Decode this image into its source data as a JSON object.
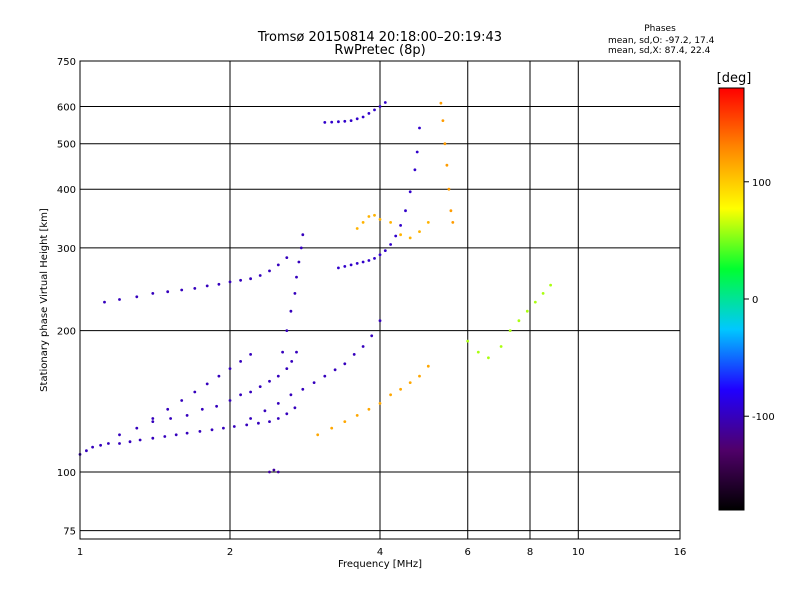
{
  "chart_data": {
    "type": "scatter",
    "title": "Tromsø 20150814 20:18:00–20:19:43",
    "subtitle": "RwPretec (8p)",
    "xlabel": "Frequency [MHz]",
    "ylabel": "Stationary phase Virtual Height [km]",
    "x_scale": "log",
    "y_scale": "log",
    "xlim": [
      1,
      16
    ],
    "ylim": [
      72,
      750
    ],
    "x_ticks": [
      1,
      2,
      4,
      6,
      8,
      10,
      16
    ],
    "y_ticks": [
      75,
      100,
      200,
      300,
      400,
      500,
      600,
      750
    ],
    "grid": true,
    "stats": {
      "heading": "Phases",
      "line1": "mean, sd,O: -97.2, 17.4",
      "line2": "mean, sd,X: 87.4, 22.4"
    },
    "colorbar": {
      "label": "[deg]",
      "range": [
        -180,
        180
      ],
      "ticks": [
        100,
        0,
        -100
      ],
      "colors": [
        "#000000",
        "#50006a",
        "#2000ff",
        "#00c8ff",
        "#00ff30",
        "#ffff00",
        "#ff8800",
        "#ff0000"
      ]
    },
    "series": [
      {
        "phase": -100,
        "x": [
          1.0,
          1.03,
          1.06,
          1.1,
          1.14,
          1.2,
          1.26,
          1.32,
          1.4,
          1.48,
          1.56,
          1.64,
          1.74,
          1.84,
          1.94,
          2.04,
          2.16,
          2.28,
          2.4,
          2.5,
          2.6,
          2.7
        ],
        "y": [
          109,
          111,
          113,
          114,
          115,
          115,
          116,
          117,
          118,
          119,
          120,
          121,
          122,
          123,
          124,
          125,
          126,
          127,
          128,
          130,
          133,
          137
        ]
      },
      {
        "phase": -100,
        "x": [
          1.2,
          1.3,
          1.4,
          1.52,
          1.64,
          1.76,
          1.88,
          2.0,
          2.1,
          2.2,
          2.3,
          2.4,
          2.5,
          2.6,
          2.66,
          2.72
        ],
        "y": [
          120,
          124,
          128,
          130,
          132,
          136,
          138,
          142,
          146,
          148,
          152,
          156,
          160,
          166,
          172,
          180
        ]
      },
      {
        "phase": -100,
        "x": [
          1.4,
          1.5,
          1.6,
          1.7,
          1.8,
          1.9,
          2.0,
          2.1,
          2.2
        ],
        "y": [
          130,
          136,
          142,
          148,
          154,
          160,
          166,
          172,
          178
        ]
      },
      {
        "phase": -100,
        "x": [
          1.12,
          1.2,
          1.3,
          1.4,
          1.5,
          1.6,
          1.7,
          1.8,
          1.9,
          2.0,
          2.1,
          2.2,
          2.3,
          2.4,
          2.5,
          2.6
        ],
        "y": [
          230,
          233,
          236,
          240,
          242,
          244,
          246,
          249,
          251,
          254,
          256,
          258,
          262,
          268,
          276,
          286
        ]
      },
      {
        "phase": -100,
        "x": [
          2.55,
          2.6,
          2.65,
          2.7,
          2.72,
          2.75,
          2.78,
          2.8
        ],
        "y": [
          180,
          200,
          220,
          240,
          260,
          280,
          300,
          320
        ]
      },
      {
        "phase": -100,
        "x": [
          2.2,
          2.35,
          2.5,
          2.65,
          2.8,
          2.95,
          3.1,
          3.25,
          3.4,
          3.55,
          3.7,
          3.85,
          4.0
        ],
        "y": [
          130,
          135,
          140,
          146,
          150,
          155,
          160,
          165,
          170,
          178,
          185,
          195,
          210
        ]
      },
      {
        "phase": -95,
        "x": [
          3.3,
          3.4,
          3.5,
          3.6,
          3.7,
          3.8,
          3.9,
          4.0,
          4.1,
          4.2,
          4.3,
          4.4,
          4.5,
          4.6,
          4.7,
          4.75,
          4.8
        ],
        "y": [
          272,
          274,
          276,
          278,
          280,
          282,
          285,
          290,
          296,
          305,
          318,
          335,
          360,
          395,
          440,
          480,
          540
        ]
      },
      {
        "phase": -95,
        "x": [
          3.1,
          3.2,
          3.3,
          3.4,
          3.5,
          3.6,
          3.7,
          3.8,
          3.9,
          4.0,
          4.1
        ],
        "y": [
          555,
          556,
          557,
          558,
          560,
          565,
          570,
          580,
          590,
          600,
          612
        ]
      },
      {
        "phase": 120,
        "x": [
          5.3,
          5.35,
          5.4,
          5.45,
          5.5,
          5.55,
          5.6
        ],
        "y": [
          610,
          560,
          500,
          450,
          400,
          360,
          340
        ]
      },
      {
        "phase": 115,
        "x": [
          3.0,
          3.2,
          3.4,
          3.6,
          3.8,
          4.0,
          4.2,
          4.4,
          4.6,
          4.8,
          5.0
        ],
        "y": [
          120,
          124,
          128,
          132,
          136,
          140,
          146,
          150,
          155,
          160,
          168
        ]
      },
      {
        "phase": 110,
        "x": [
          3.6,
          3.7,
          3.8,
          3.9,
          4.0,
          4.2,
          4.4,
          4.6,
          4.8,
          5.0
        ],
        "y": [
          330,
          340,
          350,
          352,
          345,
          340,
          320,
          315,
          325,
          340
        ]
      },
      {
        "phase": 60,
        "x": [
          6.0,
          6.3,
          6.6,
          7.0,
          7.3,
          7.6,
          7.9,
          8.2,
          8.5,
          8.8
        ],
        "y": [
          190,
          180,
          175,
          185,
          200,
          210,
          220,
          230,
          240,
          250
        ]
      },
      {
        "phase": -110,
        "x": [
          2.4,
          2.45,
          2.5
        ],
        "y": [
          100,
          101,
          100
        ]
      }
    ]
  }
}
